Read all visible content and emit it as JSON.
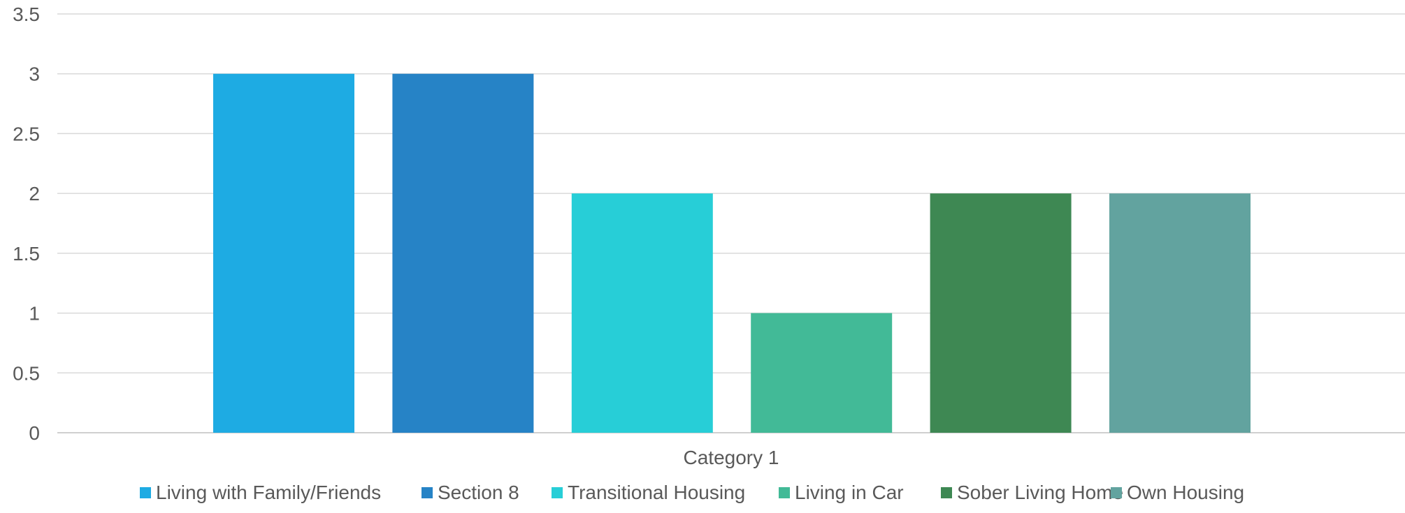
{
  "chart_data": {
    "type": "bar",
    "categories": [
      "Category 1"
    ],
    "series": [
      {
        "name": "Living with Family/Friends",
        "values": [
          3
        ],
        "color": "#1eabe3"
      },
      {
        "name": "Section 8",
        "values": [
          3
        ],
        "color": "#2683c6"
      },
      {
        "name": "Transitional Housing",
        "values": [
          2
        ],
        "color": "#27ced7"
      },
      {
        "name": "Living in Car",
        "values": [
          1
        ],
        "color": "#42ba97"
      },
      {
        "name": "Sober Living Home",
        "values": [
          2
        ],
        "color": "#3e8853"
      },
      {
        "name": "Own Housing",
        "values": [
          2
        ],
        "color": "#62a39f"
      }
    ],
    "y_ticks": [
      "0",
      "0.5",
      "1",
      "1.5",
      "2",
      "2.5",
      "3",
      "3.5"
    ],
    "ylim": [
      0,
      3.5
    ],
    "grid": true,
    "legend_position": "bottom"
  }
}
